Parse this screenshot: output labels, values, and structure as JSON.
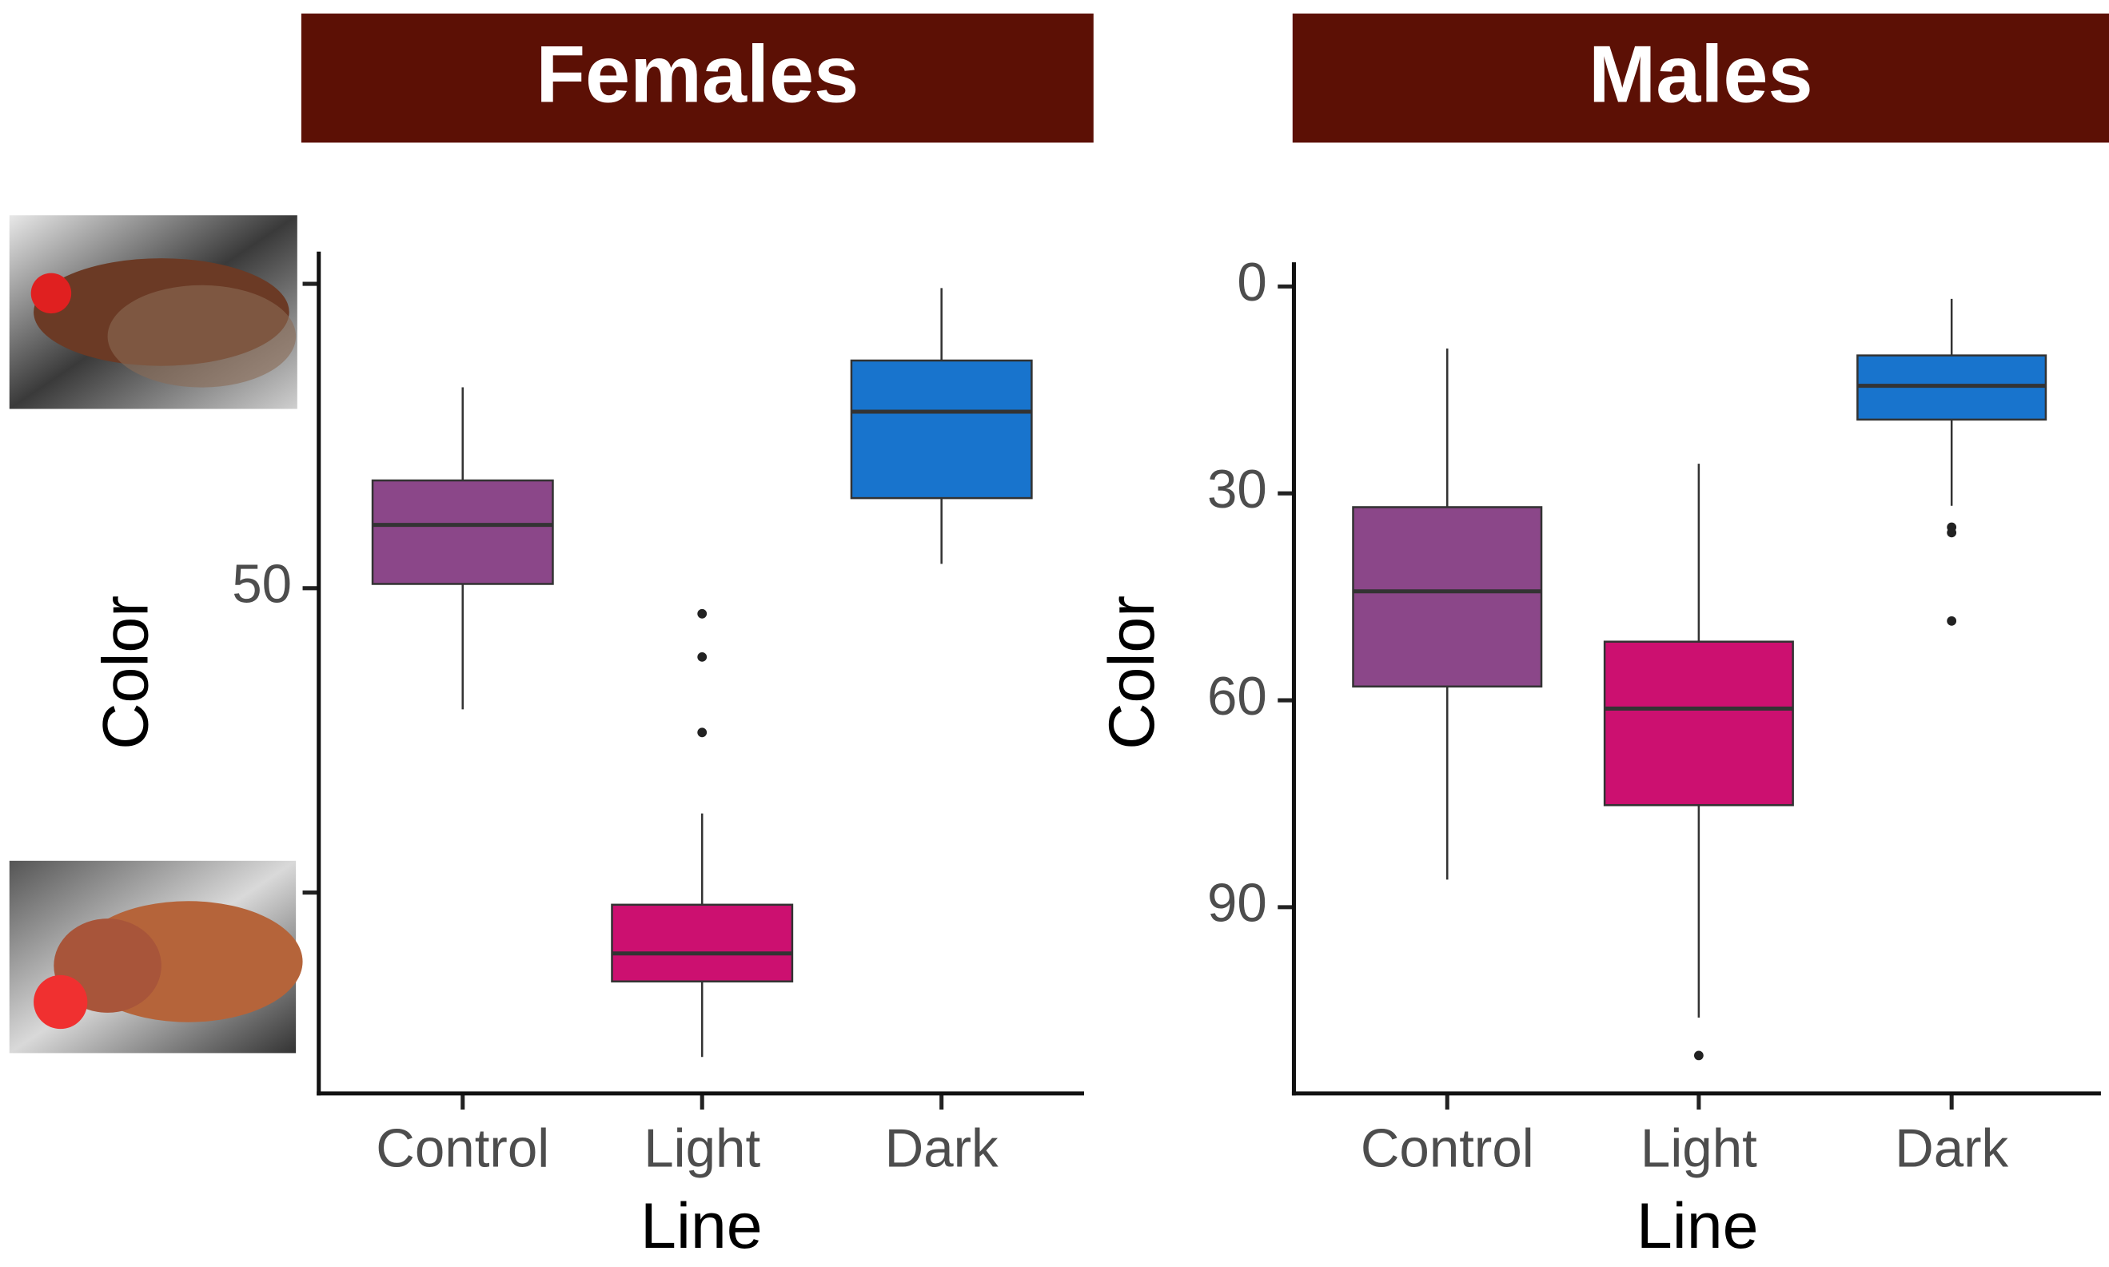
{
  "chart_data": [
    {
      "type": "box",
      "title": "Females",
      "xlabel": "Line",
      "ylabel": "Color",
      "categories": [
        "Control",
        "Light",
        "Dark"
      ],
      "colors": [
        "#8b4789",
        "#cc1070",
        "#1874cd"
      ],
      "boxes": [
        {
          "whisker_low": 17,
          "q1": 32.3,
          "median": 39.6,
          "q3": 49.3,
          "whisker_high": 69.9,
          "outliers": []
        },
        {
          "whisker_low": 87,
          "q1": 102,
          "median": 110,
          "q3": 114.6,
          "whisker_high": 127,
          "outliers": [
            54.2,
            61.3,
            73.7
          ]
        },
        {
          "whisker_low": 0.7,
          "q1": 12.6,
          "median": 21,
          "q3": 35.2,
          "whisker_high": 46,
          "outliers": []
        }
      ],
      "ylim": [
        -5.3,
        133
      ],
      "y_reversed": true,
      "yticks": [
        {
          "value": 0,
          "label": null
        },
        50,
        {
          "value": 100,
          "label": null
        }
      ]
    },
    {
      "type": "box",
      "title": "Males",
      "xlabel": "Line",
      "ylabel": "Color",
      "categories": [
        "Control",
        "Light",
        "Dark"
      ],
      "colors": [
        "#8b4789",
        "#cc1070",
        "#1874cd"
      ],
      "boxes": [
        {
          "whisker_low": 9,
          "q1": 32,
          "median": 44.2,
          "q3": 58,
          "whisker_high": 86,
          "outliers": []
        },
        {
          "whisker_low": 25.7,
          "q1": 51.5,
          "median": 61.2,
          "q3": 75.2,
          "whisker_high": 106,
          "outliers": [
            111.5
          ]
        },
        {
          "whisker_low": 1.8,
          "q1": 10,
          "median": 14.4,
          "q3": 19.3,
          "whisker_high": 31.8,
          "outliers": [
            34.9,
            35.7,
            48.5
          ]
        }
      ],
      "ylim": [
        -3.5,
        117
      ],
      "y_reversed": true,
      "yticks": [
        0,
        30,
        60,
        90
      ]
    }
  ]
}
